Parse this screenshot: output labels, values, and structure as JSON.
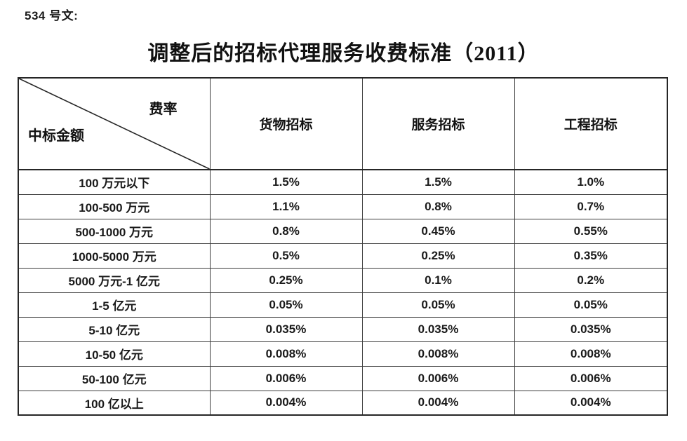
{
  "doc": {
    "ref_label": "534 号文:",
    "title": "调整后的招标代理服务收费标准（2011）"
  },
  "table": {
    "corner": {
      "top_right": "费率",
      "bottom_left": "中标金额"
    },
    "columns": [
      "货物招标",
      "服务招标",
      "工程招标"
    ],
    "rows": [
      {
        "amount": "100 万元以下",
        "values": [
          "1.5%",
          "1.5%",
          "1.0%"
        ]
      },
      {
        "amount": "100-500 万元",
        "values": [
          "1.1%",
          "0.8%",
          "0.7%"
        ]
      },
      {
        "amount": "500-1000 万元",
        "values": [
          "0.8%",
          "0.45%",
          "0.55%"
        ]
      },
      {
        "amount": "1000-5000 万元",
        "values": [
          "0.5%",
          "0.25%",
          "0.35%"
        ]
      },
      {
        "amount": "5000 万元-1 亿元",
        "values": [
          "0.25%",
          "0.1%",
          "0.2%"
        ]
      },
      {
        "amount": "1-5 亿元",
        "values": [
          "0.05%",
          "0.05%",
          "0.05%"
        ]
      },
      {
        "amount": "5-10 亿元",
        "values": [
          "0.035%",
          "0.035%",
          "0.035%"
        ]
      },
      {
        "amount": "10-50 亿元",
        "values": [
          "0.008%",
          "0.008%",
          "0.008%"
        ]
      },
      {
        "amount": "50-100 亿元",
        "values": [
          "0.006%",
          "0.006%",
          "0.006%"
        ]
      },
      {
        "amount": "100 亿以上",
        "values": [
          "0.004%",
          "0.004%",
          "0.004%"
        ]
      }
    ]
  },
  "colors": {
    "text": "#1a1a1a",
    "border_inner": "#3d3d3d",
    "border_outer": "#262626",
    "background": "#ffffff"
  }
}
